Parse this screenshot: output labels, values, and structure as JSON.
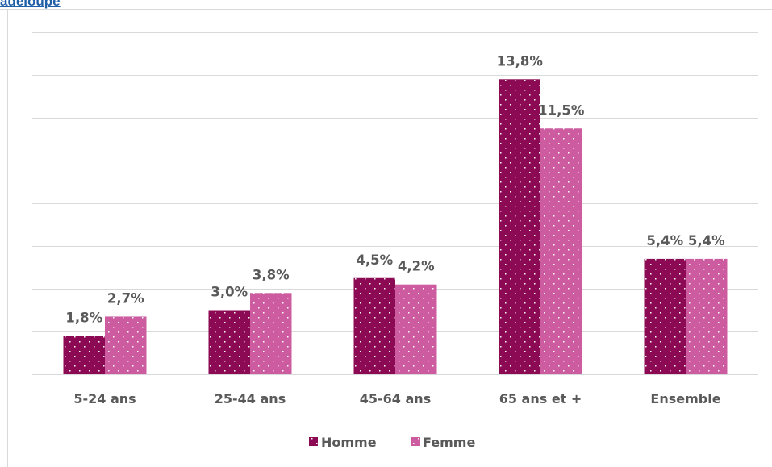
{
  "header": {
    "partial_label": "adeloupe"
  },
  "colors": {
    "homme": "#8c0a53",
    "femme": "#cc5b9f",
    "grid": "#d9d9d9",
    "text": "#595959"
  },
  "chart_data": {
    "type": "bar",
    "categories": [
      "5-24 ans",
      "25-44 ans",
      "45-64 ans",
      "65 ans et +",
      "Ensemble"
    ],
    "series": [
      {
        "name": "Homme",
        "values": [
          1.8,
          3.0,
          4.5,
          13.8,
          5.4
        ],
        "labels": [
          "1,8%",
          "3,0%",
          "4,5%",
          "13,8%",
          "5,4%"
        ]
      },
      {
        "name": "Femme",
        "values": [
          2.7,
          3.8,
          4.2,
          11.5,
          5.4
        ],
        "labels": [
          "2,7%",
          "3,8%",
          "4,2%",
          "11,5%",
          "5,4%"
        ]
      }
    ],
    "ylim": [
      0,
      16
    ],
    "gridlines": true,
    "legend": "bottom",
    "pattern": "dotted"
  }
}
